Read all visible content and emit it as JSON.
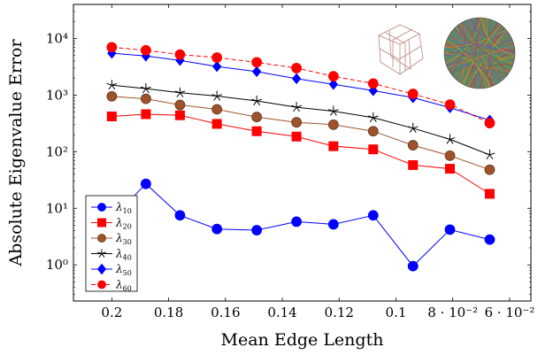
{
  "chart_data": {
    "type": "line",
    "title": "",
    "xlabel": "Mean Edge Length",
    "ylabel": "Absolute Eigenvalue Error",
    "x_reversed": true,
    "y_scale": "log",
    "xlim": [
      0.2135,
      0.0525
    ],
    "ylim": [
      0.23,
      40000
    ],
    "grid": false,
    "legend_position": "bottom-left",
    "x_ticks": [
      {
        "value": 0.2,
        "label": "0.2"
      },
      {
        "value": 0.18,
        "label": "0.18"
      },
      {
        "value": 0.16,
        "label": "0.16"
      },
      {
        "value": 0.14,
        "label": "0.14"
      },
      {
        "value": 0.12,
        "label": "0.12"
      },
      {
        "value": 0.1,
        "label": "0.1"
      },
      {
        "value": 0.08,
        "label": "8 · 10⁻²"
      },
      {
        "value": 0.06,
        "label": "6 · 10⁻²"
      }
    ],
    "y_ticks": [
      {
        "value": 1,
        "label": "10⁰"
      },
      {
        "value": 10,
        "label": "10¹"
      },
      {
        "value": 100,
        "label": "10²"
      },
      {
        "value": 1000,
        "label": "10³"
      },
      {
        "value": 10000,
        "label": "10⁴"
      }
    ],
    "x": [
      0.2,
      0.188,
      0.176,
      0.163,
      0.149,
      0.135,
      0.122,
      0.108,
      0.094,
      0.081,
      0.067
    ],
    "series": [
      {
        "name": "λ10",
        "legend_label": "λ",
        "legend_sub": "10",
        "color": "#0000ff",
        "marker": "circle",
        "dash": "",
        "values": [
          6.5,
          27,
          7.5,
          4.3,
          4.1,
          5.8,
          5.2,
          7.5,
          0.95,
          4.2,
          2.8
        ]
      },
      {
        "name": "λ20",
        "legend_label": "λ",
        "legend_sub": "20",
        "color": "#ff0000",
        "marker": "square",
        "dash": "",
        "values": [
          420,
          460,
          440,
          310,
          230,
          185,
          125,
          110,
          58,
          50,
          18
        ]
      },
      {
        "name": "λ30",
        "legend_label": "λ",
        "legend_sub": "30",
        "color": "#a0522d",
        "marker": "circle",
        "dash": "",
        "values": [
          950,
          860,
          670,
          560,
          410,
          330,
          300,
          230,
          130,
          85,
          48
        ]
      },
      {
        "name": "λ40",
        "legend_label": "λ",
        "legend_sub": "40",
        "color": "#000000",
        "marker": "star",
        "dash": "",
        "values": [
          1500,
          1300,
          1100,
          960,
          790,
          610,
          520,
          400,
          260,
          165,
          88
        ]
      },
      {
        "name": "λ50",
        "legend_label": "λ",
        "legend_sub": "50",
        "color": "#0000ff",
        "marker": "diamond",
        "dash": "",
        "values": [
          5500,
          4900,
          4100,
          3200,
          2600,
          1950,
          1550,
          1200,
          900,
          600,
          360
        ]
      },
      {
        "name": "λ60",
        "legend_label": "λ",
        "legend_sub": "60",
        "color": "#ff0000",
        "marker": "circle",
        "dash": "5,3",
        "values": [
          7000,
          6200,
          5200,
          4600,
          3800,
          3000,
          2150,
          1600,
          1050,
          680,
          320
        ]
      }
    ]
  }
}
